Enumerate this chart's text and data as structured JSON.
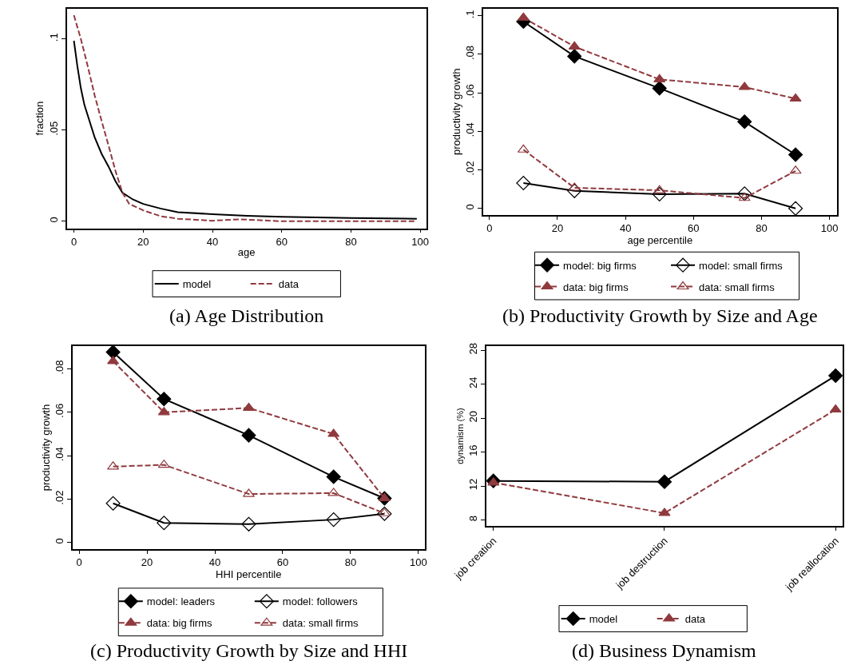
{
  "chart_data": [
    {
      "type": "line",
      "title": "(a) Age Distribution",
      "xlabel": "age",
      "ylabel": "fraction",
      "xlim": [
        -2,
        101.7
      ],
      "xticks": [
        0,
        20,
        40,
        60,
        80,
        100
      ],
      "ylim": [
        -0.0038,
        0.1167
      ],
      "yticks": [
        0,
        {
          "value": 0.05,
          "label": ".05"
        },
        {
          "value": 0.1,
          "label": ".1"
        }
      ],
      "legend": "bottom",
      "series": [
        {
          "name": "model",
          "color": "#000000",
          "line_style": "solid",
          "marker": "none",
          "x": [
            0,
            1,
            2,
            3,
            4,
            5,
            6,
            8,
            10,
            12,
            14,
            17,
            20,
            25,
            30,
            40,
            50,
            60,
            80,
            99
          ],
          "values": [
            0.099,
            0.085,
            0.073,
            0.064,
            0.058,
            0.052,
            0.046,
            0.037,
            0.03,
            0.022,
            0.0157,
            0.012,
            0.0095,
            0.007,
            0.005,
            0.0039,
            0.003,
            0.0025,
            0.0018,
            0.0014
          ]
        },
        {
          "name": "data",
          "color": "#903a3e",
          "line_style": "dashed",
          "marker": "none",
          "x": [
            0,
            2,
            4,
            6,
            8,
            10,
            12,
            14,
            16,
            20,
            25,
            30,
            40,
            48,
            60,
            99
          ],
          "values": [
            0.113,
            0.1,
            0.085,
            0.069,
            0.055,
            0.0415,
            0.0276,
            0.0157,
            0.0095,
            0.006,
            0.0028,
            0.0014,
            0.0003,
            0.0011,
            0,
            0
          ]
        }
      ]
    },
    {
      "type": "line",
      "title": "(b) Productivity Growth by Size and Age",
      "xlabel": "age percentile",
      "ylabel": "productivity growth",
      "xlim": [
        -1.8,
        102.1
      ],
      "xticks": [
        0,
        20,
        40,
        60,
        80,
        100
      ],
      "ylim": [
        -0.0034,
        0.1038
      ],
      "yticks": [
        0,
        {
          "value": 0.02,
          "label": ".02"
        },
        {
          "value": 0.04,
          "label": ".04"
        },
        {
          "value": 0.06,
          "label": ".06"
        },
        {
          "value": 0.08,
          "label": ".08"
        },
        {
          "value": 0.1,
          "label": ".1"
        }
      ],
      "legend": "bottom",
      "x": [
        10,
        25,
        50,
        75,
        90
      ],
      "series": [
        {
          "name": "model: big firms",
          "color": "#000000",
          "line_style": "solid",
          "marker": "diamond",
          "values": [
            0.097,
            0.079,
            0.0624,
            0.045,
            0.0279
          ]
        },
        {
          "name": "model: small firms",
          "color": "#000000",
          "line_style": "solid",
          "marker": "diamond-open",
          "values": [
            0.0132,
            0.0091,
            0.0074,
            0.0077,
            0
          ]
        },
        {
          "name": "data: big firms",
          "color": "#903a3e",
          "line_style": "dashed",
          "marker": "triangle",
          "values": [
            0.099,
            0.084,
            0.067,
            0.063,
            0.057
          ]
        },
        {
          "name": "data: small firms",
          "color": "#903a3e",
          "line_style": "dashed",
          "marker": "triangle-open",
          "values": [
            0.0305,
            0.0107,
            0.0094,
            0.0054,
            0.0195
          ]
        }
      ]
    },
    {
      "type": "line",
      "title": "(c) Productivity Growth by Size and HHI",
      "xlabel": "HHI percentile",
      "ylabel": "productivity growth",
      "xlim": [
        -1.9,
        101.8
      ],
      "xticks": [
        0,
        20,
        40,
        60,
        80,
        100
      ],
      "ylim": [
        -0.003,
        0.0905
      ],
      "yticks": [
        0,
        {
          "value": 0.02,
          "label": ".02"
        },
        {
          "value": 0.04,
          "label": ".04"
        },
        {
          "value": 0.06,
          "label": ".06"
        },
        {
          "value": 0.08,
          "label": ".08"
        }
      ],
      "legend": "bottom",
      "x": [
        10,
        25,
        50,
        75,
        90
      ],
      "series": [
        {
          "name": "model: leaders",
          "color": "#000000",
          "line_style": "solid",
          "marker": "diamond",
          "values": [
            0.0877,
            0.0661,
            0.0494,
            0.0303,
            0.0204
          ]
        },
        {
          "name": "model: followers",
          "color": "#000000",
          "line_style": "solid",
          "marker": "diamond-open",
          "values": [
            0.0181,
            0.0091,
            0.0085,
            0.0106,
            0.0133
          ]
        },
        {
          "name": "data: big firms",
          "color": "#903a3e",
          "line_style": "dashed",
          "marker": "triangle",
          "values": [
            0.0835,
            0.06,
            0.062,
            0.05,
            0.0204
          ]
        },
        {
          "name": "data: small firms",
          "color": "#903a3e",
          "line_style": "dashed",
          "marker": "triangle-open",
          "values": [
            0.035,
            0.0358,
            0.0224,
            0.0228,
            0.0135
          ]
        }
      ]
    },
    {
      "type": "line",
      "title": "(d) Business Dynamism",
      "ylabel": "dynamism (%)",
      "ylim": [
        7.28,
        28.5
      ],
      "yticks": [
        8,
        12,
        16,
        20,
        24,
        28
      ],
      "legend": "bottom",
      "categories": [
        "job creation",
        "job destruction",
        "job reallocation"
      ],
      "series": [
        {
          "name": "model",
          "color": "#000000",
          "line_style": "solid",
          "marker": "diamond",
          "values": [
            12.6,
            12.5,
            25.0
          ]
        },
        {
          "name": "data",
          "color": "#903a3e",
          "line_style": "dashed",
          "marker": "triangle",
          "values": [
            12.4,
            8.8,
            21.0
          ]
        }
      ]
    }
  ]
}
